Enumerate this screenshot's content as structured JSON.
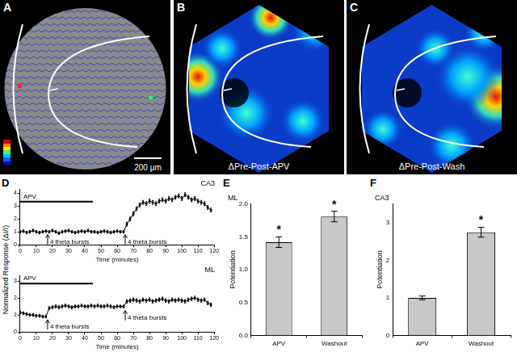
{
  "panels": [
    {
      "label": "A",
      "scale_bar": "200 μm"
    },
    {
      "label": "B",
      "caption": "ΔPre-Post-APV"
    },
    {
      "label": "C",
      "caption": "ΔPre-Post-Wash"
    }
  ],
  "chart_data": [
    {
      "panel": "D",
      "type": "line",
      "title": "CA3",
      "xlabel": "Time (minutes)",
      "ylabel": "Normalized Response (ΔI/I)",
      "x": [
        0,
        2,
        4,
        6,
        8,
        10,
        12,
        14,
        16,
        18,
        20,
        22,
        24,
        26,
        28,
        30,
        32,
        34,
        36,
        38,
        40,
        42,
        44,
        46,
        48,
        50,
        52,
        54,
        56,
        58,
        60,
        62,
        64,
        66,
        68,
        70,
        72,
        74,
        76,
        78,
        80,
        82,
        84,
        86,
        88,
        90,
        92,
        94,
        96,
        98,
        100,
        102,
        104,
        106,
        108,
        110,
        112,
        114,
        116,
        118
      ],
      "values": [
        1.0,
        1.05,
        0.95,
        1.0,
        1.1,
        1.0,
        0.95,
        1.0,
        1.05,
        1.0,
        1.1,
        1.0,
        0.9,
        1.0,
        1.05,
        1.1,
        1.0,
        0.95,
        1.0,
        1.05,
        1.0,
        1.1,
        1.0,
        1.0,
        0.95,
        1.0,
        1.05,
        1.0,
        0.95,
        1.0,
        1.05,
        1.0,
        1.0,
        1.6,
        2.0,
        2.4,
        2.8,
        3.1,
        3.3,
        3.2,
        3.4,
        3.3,
        3.2,
        3.4,
        3.5,
        3.4,
        3.6,
        3.5,
        3.7,
        3.8,
        3.6,
        3.9,
        3.7,
        3.5,
        3.6,
        3.4,
        3.3,
        3.2,
        2.9,
        2.7
      ],
      "errors": [
        0.1,
        0.1,
        0.1,
        0.1,
        0.1,
        0.1,
        0.1,
        0.1,
        0.1,
        0.1,
        0.1,
        0.1,
        0.1,
        0.1,
        0.1,
        0.1,
        0.1,
        0.1,
        0.1,
        0.1,
        0.1,
        0.1,
        0.1,
        0.1,
        0.1,
        0.1,
        0.1,
        0.1,
        0.1,
        0.1,
        0.1,
        0.1,
        0.1,
        0.15,
        0.15,
        0.15,
        0.15,
        0.15,
        0.15,
        0.15,
        0.15,
        0.15,
        0.15,
        0.15,
        0.15,
        0.15,
        0.15,
        0.15,
        0.15,
        0.15,
        0.15,
        0.15,
        0.15,
        0.15,
        0.15,
        0.15,
        0.15,
        0.15,
        0.15,
        0.15
      ],
      "color": "#000000",
      "marker": "square",
      "line_style": "solid",
      "xlim": [
        0,
        120
      ],
      "xticks": [
        0,
        10,
        20,
        30,
        40,
        50,
        60,
        70,
        80,
        90,
        100,
        110,
        120
      ],
      "ylim": [
        0,
        4.3
      ],
      "yticks": [
        0,
        1,
        2,
        3,
        4
      ],
      "grid": false,
      "annotations": [
        {
          "text": "APV",
          "x": [
            0,
            45
          ],
          "y": 3.35
        },
        {
          "text": "4 theta bursts",
          "x": 17,
          "y": 0.9
        },
        {
          "text": "4 theta bursts",
          "x": 65,
          "y": 0.9
        }
      ]
    },
    {
      "type": "line",
      "title": "ML",
      "xlabel": "Time (minutes)",
      "x": [
        0,
        2,
        4,
        6,
        8,
        10,
        12,
        14,
        16,
        18,
        20,
        22,
        24,
        26,
        28,
        30,
        32,
        34,
        36,
        38,
        40,
        42,
        44,
        46,
        48,
        50,
        52,
        54,
        56,
        58,
        60,
        62,
        64,
        66,
        68,
        70,
        72,
        74,
        76,
        78,
        80,
        82,
        84,
        86,
        88,
        90,
        92,
        94,
        96,
        98,
        100,
        102,
        104,
        106,
        108,
        110,
        112,
        114,
        116,
        118
      ],
      "values": [
        1.15,
        1.1,
        1.05,
        1.0,
        1.0,
        0.95,
        0.95,
        0.9,
        0.9,
        1.4,
        1.45,
        1.5,
        1.45,
        1.5,
        1.55,
        1.5,
        1.45,
        1.5,
        1.5,
        1.55,
        1.5,
        1.5,
        1.55,
        1.5,
        1.55,
        1.5,
        1.5,
        1.55,
        1.5,
        1.45,
        1.5,
        1.5,
        1.5,
        1.8,
        1.85,
        1.9,
        1.85,
        1.8,
        1.9,
        1.85,
        1.9,
        1.8,
        1.85,
        1.9,
        1.95,
        1.85,
        1.8,
        1.9,
        1.85,
        1.9,
        1.85,
        1.8,
        1.9,
        1.95,
        2.0,
        1.9,
        1.85,
        1.9,
        1.7,
        1.6
      ],
      "errors": [
        0.08,
        0.08,
        0.08,
        0.08,
        0.08,
        0.08,
        0.08,
        0.08,
        0.08,
        0.08,
        0.08,
        0.08,
        0.08,
        0.08,
        0.08,
        0.08,
        0.08,
        0.08,
        0.08,
        0.08,
        0.08,
        0.08,
        0.08,
        0.08,
        0.08,
        0.08,
        0.08,
        0.08,
        0.08,
        0.08,
        0.08,
        0.08,
        0.08,
        0.1,
        0.1,
        0.1,
        0.1,
        0.1,
        0.1,
        0.1,
        0.1,
        0.1,
        0.1,
        0.1,
        0.1,
        0.1,
        0.1,
        0.1,
        0.1,
        0.1,
        0.1,
        0.1,
        0.1,
        0.1,
        0.1,
        0.1,
        0.1,
        0.1,
        0.1,
        0.1
      ],
      "color": "#000000",
      "marker": "square",
      "line_style": "solid",
      "xlim": [
        0,
        120
      ],
      "xticks": [
        0,
        10,
        20,
        30,
        40,
        50,
        60,
        70,
        80,
        90,
        100,
        110,
        120
      ],
      "ylim": [
        0,
        3.3
      ],
      "yticks": [
        0,
        1,
        2,
        3
      ],
      "grid": false,
      "annotations": [
        {
          "text": "APV",
          "x": [
            0,
            45
          ],
          "y": 2.85
        },
        {
          "text": "4 theta bursts",
          "x": 17,
          "y": 0.8
        },
        {
          "text": "4 theta bursts",
          "x": 65,
          "y": 1.35
        }
      ]
    },
    {
      "panel": "E",
      "type": "bar",
      "title": "ML",
      "ylabel": "Potentiation",
      "categories": [
        "APV",
        "Washout"
      ],
      "values": [
        1.42,
        1.81
      ],
      "errors": [
        0.08,
        0.08
      ],
      "color": "#c8c8c8",
      "ylim": [
        0,
        2.0
      ],
      "yticks": [
        {
          "value": 0,
          "label": "0.0"
        },
        0.5,
        {
          "value": 1,
          "label": "1.0"
        },
        1.5,
        {
          "value": 2,
          "label": "2.0"
        }
      ],
      "grid": false,
      "annotations": [
        {
          "text": "*",
          "category": "APV"
        },
        {
          "text": "*",
          "category": "Washout"
        }
      ]
    },
    {
      "panel": "F",
      "type": "bar",
      "title": "CA3",
      "ylabel": "Potentiation",
      "categories": [
        "APV",
        "Washout"
      ],
      "values": [
        1.0,
        2.75
      ],
      "errors": [
        0.05,
        0.13
      ],
      "color": "#c8c8c8",
      "ylim": [
        0,
        3.5
      ],
      "yticks": [
        0,
        1,
        2,
        3
      ],
      "grid": false,
      "annotations": [
        {
          "text": "*",
          "category": "Washout"
        }
      ]
    }
  ]
}
